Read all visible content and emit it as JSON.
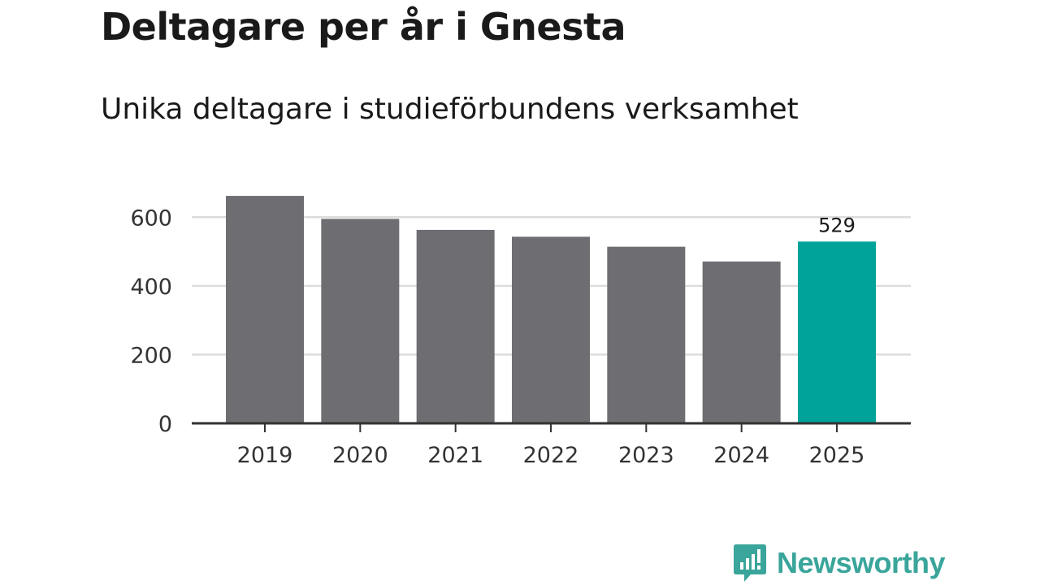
{
  "title": "Deltagare per år i Gnesta",
  "subtitle": "Unika deltagare i studieförbundens verksamhet",
  "brand": {
    "name": "Newsworthy",
    "color": "#3aa59a"
  },
  "colors": {
    "bar": "#6e6d72",
    "highlight": "#00a39a",
    "grid": "#dcdcdc",
    "axis": "#333333"
  },
  "chart_data": {
    "type": "bar",
    "title": "Deltagare per år i Gnesta",
    "subtitle": "Unika deltagare i studieförbundens verksamhet",
    "xlabel": "",
    "ylabel": "",
    "categories": [
      "2019",
      "2020",
      "2021",
      "2022",
      "2023",
      "2024",
      "2025"
    ],
    "values": [
      662,
      595,
      563,
      543,
      514,
      471,
      529
    ],
    "highlight_index": 6,
    "data_labels": [
      {
        "index": 6,
        "text": "529"
      }
    ],
    "yticks": [
      0,
      200,
      400,
      600
    ],
    "ylim": [
      0,
      700
    ],
    "grid": true
  }
}
